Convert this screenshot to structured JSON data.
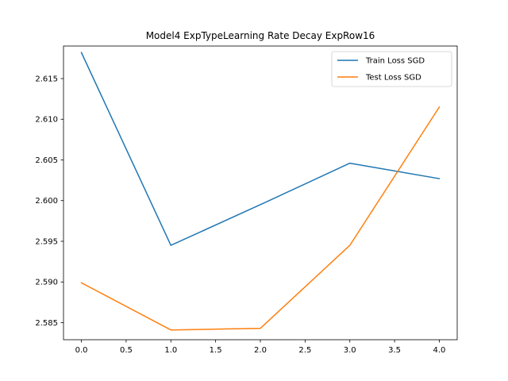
{
  "chart_data": {
    "type": "line",
    "title": "Model4 ExpTypeLearning Rate Decay ExpRow16",
    "xlabel": "",
    "ylabel": "",
    "x": [
      0,
      1,
      2,
      3,
      4
    ],
    "xlim": [
      -0.2,
      4.2
    ],
    "ylim": [
      2.5829,
      2.619
    ],
    "xticks": [
      0.0,
      0.5,
      1.0,
      1.5,
      2.0,
      2.5,
      3.0,
      3.5,
      4.0
    ],
    "xtick_labels": [
      "0.0",
      "0.5",
      "1.0",
      "1.5",
      "2.0",
      "2.5",
      "3.0",
      "3.5",
      "4.0"
    ],
    "yticks": [
      2.585,
      2.59,
      2.595,
      2.6,
      2.605,
      2.61,
      2.615
    ],
    "ytick_labels": [
      "2.585",
      "2.590",
      "2.595",
      "2.600",
      "2.605",
      "2.610",
      "2.615"
    ],
    "grid": false,
    "legend": "top-right",
    "series": [
      {
        "name": "Train Loss SGD",
        "color": "#1f77b4",
        "values": [
          2.6182,
          2.5945,
          2.5995,
          2.6046,
          2.6027
        ]
      },
      {
        "name": "Test Loss SGD",
        "color": "#ff7f0e",
        "values": [
          2.5899,
          2.5841,
          2.5843,
          2.5945,
          2.6115
        ]
      }
    ]
  }
}
